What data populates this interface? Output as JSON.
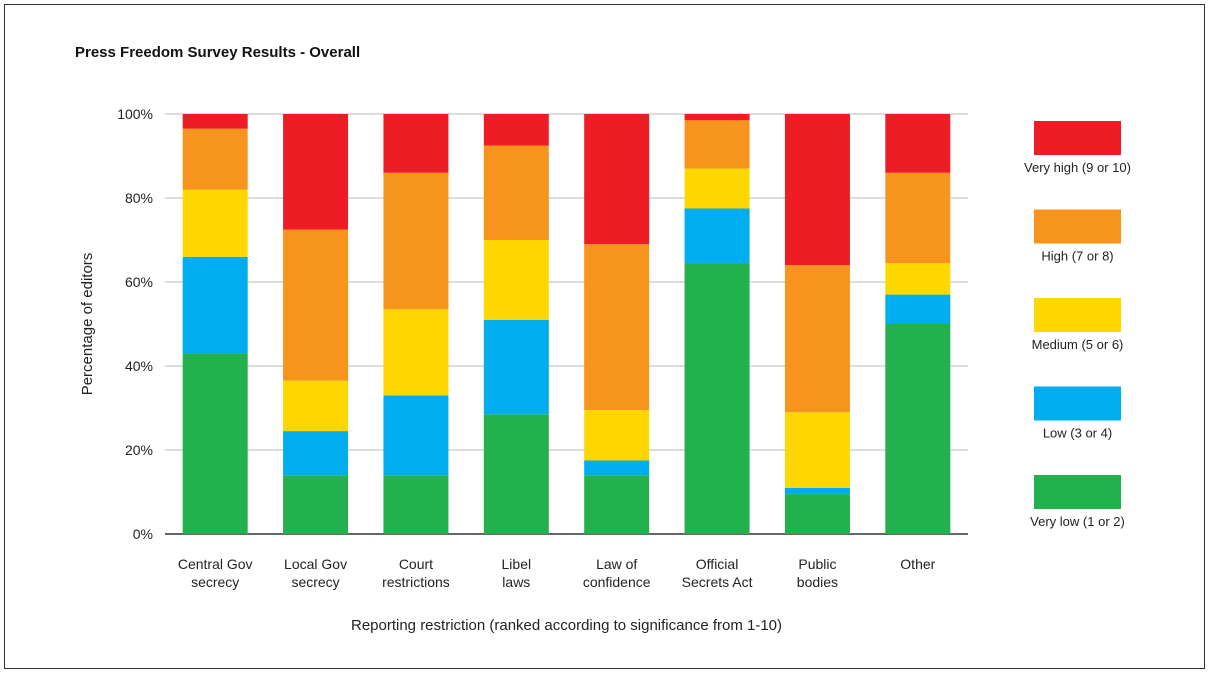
{
  "chart_data": {
    "type": "bar",
    "stacked": true,
    "title": "Press Freedom Survey Results - Overall",
    "xlabel": "Reporting restriction (ranked according to significance from 1-10)",
    "ylabel": "Percentage of editors",
    "ylim": [
      0,
      100
    ],
    "yticks": [
      "0%",
      "20%",
      "40%",
      "60%",
      "80%",
      "100%"
    ],
    "grid": true,
    "legend_position": "right",
    "categories": [
      [
        "Central Gov",
        "secrecy"
      ],
      [
        "Local Gov",
        "secrecy"
      ],
      [
        "Court",
        "restrictions"
      ],
      [
        "Libel",
        "laws"
      ],
      [
        "Law of",
        "confidence"
      ],
      [
        "Official",
        "Secrets Act"
      ],
      [
        "Public",
        "bodies"
      ],
      [
        "Other"
      ]
    ],
    "series": [
      {
        "name": "Very low (1 or 2)",
        "color": "#22b14c",
        "values": [
          43,
          14,
          14,
          28.5,
          14,
          64.5,
          9.5,
          50
        ]
      },
      {
        "name": "Low (3 or 4)",
        "color": "#00aeef",
        "values": [
          23,
          10.5,
          19,
          22.5,
          3.5,
          13,
          1.5,
          7
        ]
      },
      {
        "name": "Medium (5 or 6)",
        "color": "#ffd700",
        "values": [
          16,
          12,
          20.5,
          19,
          12,
          9.5,
          18,
          7.5
        ]
      },
      {
        "name": "High (7 or 8)",
        "color": "#f7941d",
        "values": [
          14.5,
          36,
          32.5,
          22.5,
          39.5,
          11.5,
          35,
          21.5
        ]
      },
      {
        "name": "Very high (9 or 10)",
        "color": "#ee1c25",
        "values": [
          3.5,
          27.5,
          14,
          7.5,
          31,
          1.5,
          36,
          14
        ]
      }
    ]
  }
}
